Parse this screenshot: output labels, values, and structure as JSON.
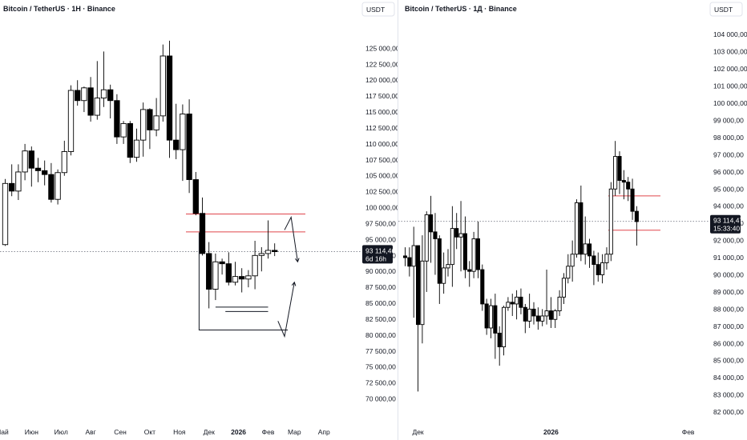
{
  "colors": {
    "up_body": "#ffffff",
    "down_body": "#000000",
    "candle_outline": "#000000",
    "level_line": "#e0464b",
    "drawing": "#131722",
    "price_label_bg": "#131722",
    "price_label_text": "#ffffff",
    "axis_text": "#131722",
    "dotted_line": "#787b86"
  },
  "chart_data": [
    {
      "type": "candlestick",
      "title": "Bitcoin / TetherUS · 1Н · Binance",
      "currency": "USDT",
      "y_ticks": [
        "125 000,00",
        "122 500,00",
        "120 000,00",
        "117 500,00",
        "115 000,00",
        "112 500,00",
        "110 000,00",
        "107 500,00",
        "105 000,00",
        "102 500,00",
        "100 000,00",
        "97 500,00",
        "95 000,00",
        "92 500,00",
        "90 000,00",
        "87 500,00",
        "85 000,00",
        "82 500,00",
        "80 000,00",
        "77 500,00",
        "75 000,00",
        "72 500,00",
        "70 000,00"
      ],
      "ylim": [
        68500,
        127500
      ],
      "x_labels": [
        {
          "label": "Май",
          "i": -0.5
        },
        {
          "label": "Июн",
          "i": 4
        },
        {
          "label": "Июл",
          "i": 8.5
        },
        {
          "label": "Авг",
          "i": 13
        },
        {
          "label": "Сен",
          "i": 17.5
        },
        {
          "label": "Окт",
          "i": 22
        },
        {
          "label": "Ноя",
          "i": 26.5
        },
        {
          "label": "Дек",
          "i": 31
        },
        {
          "label": "2026",
          "i": 35.5,
          "bold": true
        },
        {
          "label": "Фев",
          "i": 40
        },
        {
          "label": "Мар",
          "i": 44
        },
        {
          "label": "Апр",
          "i": 48.5
        }
      ],
      "candles": [
        [
          94200,
          103800,
          94000,
          104500
        ],
        [
          103800,
          102600,
          101800,
          106800
        ],
        [
          102600,
          105600,
          101200,
          106800
        ],
        [
          105600,
          108900,
          104300,
          110000
        ],
        [
          108900,
          106200,
          103300,
          109600
        ],
        [
          106200,
          105800,
          104000,
          107800
        ],
        [
          105800,
          105200,
          103500,
          107400
        ],
        [
          105200,
          101300,
          100800,
          107000
        ],
        [
          101300,
          105500,
          100500,
          106000
        ],
        [
          105500,
          108800,
          105000,
          110500
        ],
        [
          108800,
          118400,
          108200,
          119200
        ],
        [
          118400,
          116800,
          116000,
          120000
        ],
        [
          116800,
          118800,
          115000,
          119000
        ],
        [
          118800,
          114500,
          113500,
          120500
        ],
        [
          114500,
          117200,
          113800,
          123000
        ],
        [
          117200,
          118500,
          115800,
          124500
        ],
        [
          118500,
          116800,
          114000,
          119300
        ],
        [
          116800,
          111100,
          110000,
          117800
        ],
        [
          111100,
          113200,
          110000,
          113600
        ],
        [
          113200,
          107900,
          107000,
          113600
        ],
        [
          107900,
          110600,
          107200,
          112400
        ],
        [
          110600,
          115400,
          108000,
          116500
        ],
        [
          115400,
          112200,
          109200,
          115600
        ],
        [
          112200,
          114400,
          111200,
          117200
        ],
        [
          114400,
          123800,
          113500,
          125600
        ],
        [
          123800,
          110600,
          107800,
          126200
        ],
        [
          110600,
          109100,
          107600,
          116300
        ],
        [
          109100,
          114700,
          104200,
          116200
        ],
        [
          114700,
          104400,
          102300,
          117000
        ],
        [
          104400,
          99100,
          98800,
          105600
        ],
        [
          99100,
          92800,
          92500,
          101600
        ],
        [
          92800,
          87200,
          84200,
          94600
        ],
        [
          87200,
          91500,
          85500,
          92800
        ],
        [
          91500,
          91200,
          89500,
          92000
        ],
        [
          91200,
          88300,
          87800,
          93000
        ],
        [
          88300,
          89200,
          87800,
          91500
        ],
        [
          89200,
          88800,
          86700,
          90500
        ],
        [
          88800,
          89300,
          87500,
          90200
        ],
        [
          89300,
          92500,
          87200,
          94800
        ],
        [
          92500,
          92800,
          90000,
          93800
        ],
        [
          92800,
          93300,
          92000,
          98000
        ],
        [
          93300,
          93100,
          92400,
          94400
        ]
      ],
      "last_price": "93 114,46",
      "countdown": "6d 16h",
      "last_price_value": 93114.46,
      "levels": [
        99000,
        96200
      ],
      "annotations": [
        {
          "type": "hline",
          "y": 84400,
          "i0": 32,
          "i1": 40
        },
        {
          "type": "hline",
          "y": 83700,
          "i0": 33.5,
          "i1": 40
        },
        {
          "type": "path",
          "pts": [
            [
              29.5,
              96100
            ],
            [
              29.5,
              80800
            ],
            [
              43,
              80800
            ]
          ]
        },
        {
          "type": "path",
          "pts": [
            [
              41.5,
              82200
            ],
            [
              42.5,
              79800
            ],
            [
              44,
              88300
            ]
          ],
          "arrow": true
        },
        {
          "type": "path",
          "pts": [
            [
              42.5,
              96500
            ],
            [
              43.5,
              98500
            ],
            [
              44.5,
              91500
            ]
          ],
          "arrow": true
        }
      ]
    },
    {
      "type": "candlestick",
      "title": "Bitcoin / TetherUS · 1Д · Binance",
      "currency": "USDT",
      "y_ticks": [
        "104 000,00",
        "103 000,00",
        "102 000,00",
        "101 000,00",
        "100 000,00",
        "99 000,00",
        "98 000,00",
        "97 000,00",
        "96 000,00",
        "95 000,00",
        "94 000,00",
        "93 000,00",
        "92 000,00",
        "91 000,00",
        "90 000,00",
        "89 000,00",
        "88 000,00",
        "87 000,00",
        "86 000,00",
        "85 000,00",
        "84 000,00",
        "83 000,00",
        "82 000,00"
      ],
      "ylim": [
        81700,
        104500
      ],
      "x_labels": [
        {
          "label": "Дек",
          "i": 3
        },
        {
          "label": "2026",
          "i": 34,
          "bold": true
        },
        {
          "label": "Фев",
          "i": 66
        }
      ],
      "candles": [
        [
          91100,
          91000,
          90500,
          91600
        ],
        [
          91000,
          90500,
          89900,
          91600
        ],
        [
          90500,
          91700,
          87500,
          92800
        ],
        [
          91700,
          87100,
          83200,
          91600
        ],
        [
          87100,
          90800,
          86000,
          92300
        ],
        [
          90800,
          93500,
          89000,
          93700
        ],
        [
          93500,
          92500,
          90700,
          94600
        ],
        [
          92500,
          92100,
          90000,
          93600
        ],
        [
          92100,
          89500,
          88300,
          92300
        ],
        [
          89500,
          90400,
          88900,
          91300
        ],
        [
          90400,
          90600,
          89900,
          91500
        ],
        [
          90600,
          92700,
          89300,
          94000
        ],
        [
          92700,
          92200,
          91500,
          93600
        ],
        [
          92200,
          92400,
          90200,
          94300
        ],
        [
          92400,
          90300,
          89800,
          93400
        ],
        [
          90300,
          90200,
          89300,
          90800
        ],
        [
          90200,
          92100,
          89800,
          92500
        ],
        [
          92100,
          90300,
          89800,
          93100
        ],
        [
          90300,
          88300,
          87900,
          90600
        ],
        [
          88300,
          86900,
          86500,
          88600
        ],
        [
          86900,
          88200,
          86300,
          88600
        ],
        [
          88200,
          86600,
          85100,
          88900
        ],
        [
          86600,
          85800,
          84700,
          87000
        ],
        [
          85800,
          88100,
          85300,
          88200
        ],
        [
          88100,
          88400,
          87900,
          88700
        ],
        [
          88400,
          88300,
          87600,
          88900
        ],
        [
          88300,
          88700,
          87400,
          89100
        ],
        [
          88700,
          88100,
          87700,
          89200
        ],
        [
          88100,
          87300,
          86600,
          88300
        ],
        [
          87300,
          88000,
          86900,
          88900
        ],
        [
          88000,
          87600,
          87100,
          88400
        ],
        [
          87600,
          87300,
          86800,
          88100
        ],
        [
          87300,
          87600,
          87000,
          88000
        ],
        [
          87600,
          87900,
          87100,
          90300
        ],
        [
          87900,
          87400,
          86900,
          88700
        ],
        [
          87400,
          87900,
          86900,
          88000
        ],
        [
          87900,
          88700,
          87600,
          89100
        ],
        [
          88700,
          89800,
          88300,
          90100
        ],
        [
          89800,
          90500,
          89500,
          91200
        ],
        [
          90500,
          91200,
          89600,
          92000
        ],
        [
          91200,
          94200,
          91000,
          94400
        ],
        [
          94200,
          91200,
          90800,
          95200
        ],
        [
          91200,
          91800,
          90600,
          93400
        ],
        [
          91800,
          91100,
          90400,
          92100
        ],
        [
          91100,
          90600,
          89400,
          91400
        ],
        [
          90600,
          90000,
          89600,
          91300
        ],
        [
          90000,
          90700,
          89500,
          91200
        ],
        [
          90700,
          91200,
          90300,
          91600
        ],
        [
          91200,
          95000,
          90800,
          95400
        ],
        [
          95000,
          96900,
          94600,
          97800
        ],
        [
          96900,
          95500,
          94700,
          97200
        ],
        [
          95500,
          95400,
          94400,
          96100
        ],
        [
          95400,
          95000,
          94300,
          95700
        ],
        [
          95000,
          93700,
          93200,
          95600
        ],
        [
          93700,
          93100,
          91700,
          94000
        ]
      ],
      "last_price": "93 114,47",
      "countdown": "15:33:40",
      "last_price_value": 93114.47,
      "levels": [
        94600,
        92600
      ],
      "annotations": []
    }
  ]
}
